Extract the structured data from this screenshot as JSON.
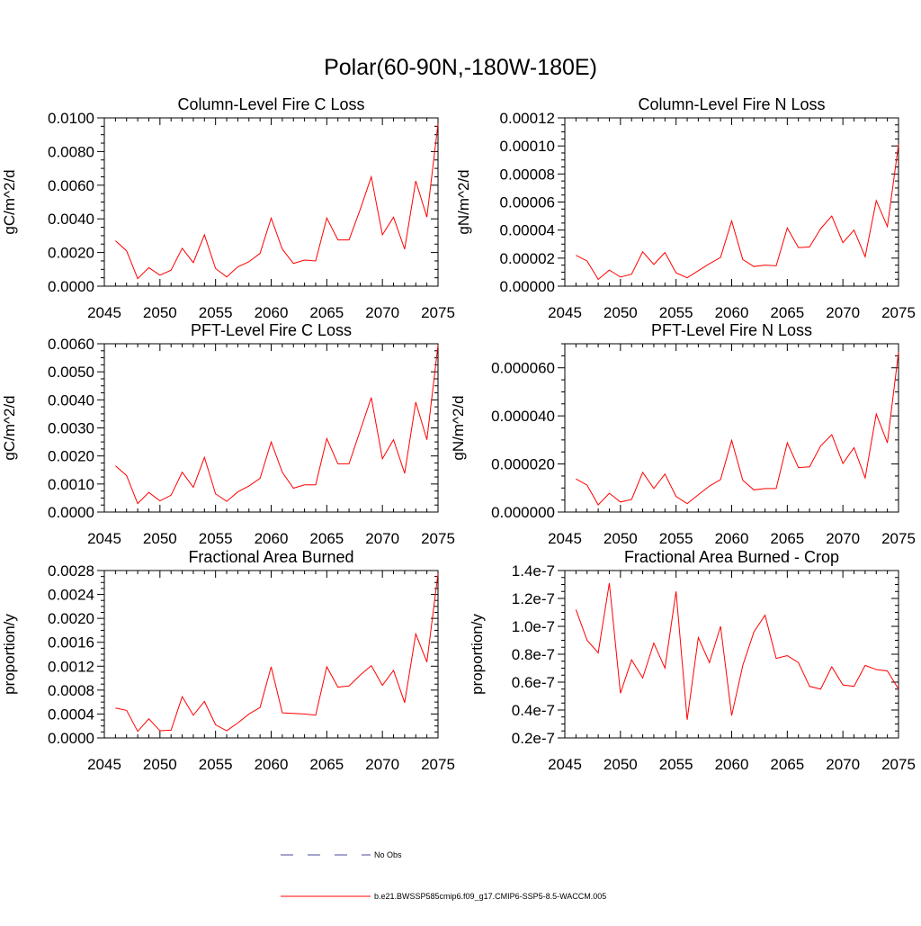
{
  "title": "Polar(60-90N,-180W-180E)",
  "colors": {
    "model_line": "#ff0000",
    "obs_line": "#4a4a99",
    "axis": "#000000"
  },
  "legend": {
    "entries": [
      {
        "label": "No Obs",
        "style": "dashed",
        "color": "#4a4a99"
      },
      {
        "label": "b.e21.BWSSP585cmip6.f09_g17.CMIP6-SSP5-8.5-WACCM.005",
        "style": "solid",
        "color": "#ff0000"
      }
    ]
  },
  "chart_data": [
    {
      "type": "line",
      "title": "Column-Level Fire C Loss",
      "ylabel": "gC/m^2/d",
      "xlim": [
        2045,
        2075
      ],
      "ylim": [
        0,
        0.01
      ],
      "xticks": [
        "2045",
        "2050",
        "2055",
        "2060",
        "2065",
        "2070",
        "2075"
      ],
      "yticks": [
        {
          "value": 0.0,
          "label": "0.0000"
        },
        {
          "value": 0.002,
          "label": "0.0020"
        },
        {
          "value": 0.004,
          "label": "0.0040"
        },
        {
          "value": 0.006,
          "label": "0.0060"
        },
        {
          "value": 0.008,
          "label": "0.0080"
        },
        {
          "value": 0.01,
          "label": "0.0100"
        }
      ],
      "x": [
        2046,
        2047,
        2048,
        2049,
        2050,
        2051,
        2052,
        2053,
        2054,
        2055,
        2056,
        2057,
        2058,
        2059,
        2060,
        2061,
        2062,
        2063,
        2064,
        2065,
        2066,
        2067,
        2068,
        2069,
        2070,
        2071,
        2072,
        2073,
        2074,
        2075
      ],
      "series": [
        {
          "values": [
            0.0027,
            0.0021,
            0.00045,
            0.0011,
            0.00065,
            0.00095,
            0.00225,
            0.0014,
            0.00305,
            0.00105,
            0.00055,
            0.00115,
            0.00145,
            0.00195,
            0.00405,
            0.0022,
            0.00135,
            0.00155,
            0.0015,
            0.00405,
            0.00275,
            0.00275,
            0.00455,
            0.0065,
            0.00305,
            0.0041,
            0.0022,
            0.00625,
            0.0041,
            0.00965
          ]
        }
      ]
    },
    {
      "type": "line",
      "title": "Column-Level Fire N Loss",
      "ylabel": "gN/m^2/d",
      "xlim": [
        2045,
        2075
      ],
      "ylim": [
        0,
        0.00012
      ],
      "xticks": [
        "2045",
        "2050",
        "2055",
        "2060",
        "2065",
        "2070",
        "2075"
      ],
      "yticks": [
        {
          "value": 0.0,
          "label": "0.00000"
        },
        {
          "value": 2e-05,
          "label": "0.00002"
        },
        {
          "value": 4e-05,
          "label": "0.00004"
        },
        {
          "value": 6e-05,
          "label": "0.00006"
        },
        {
          "value": 8e-05,
          "label": "0.00008"
        },
        {
          "value": 0.0001,
          "label": "0.00010"
        },
        {
          "value": 0.00012,
          "label": "0.00012"
        }
      ],
      "x": [
        2046,
        2047,
        2048,
        2049,
        2050,
        2051,
        2052,
        2053,
        2054,
        2055,
        2056,
        2057,
        2058,
        2059,
        2060,
        2061,
        2062,
        2063,
        2064,
        2065,
        2066,
        2067,
        2068,
        2069,
        2070,
        2071,
        2072,
        2073,
        2074,
        2075
      ],
      "series": [
        {
          "values": [
            2.2e-05,
            1.8e-05,
            4.8e-06,
            1.15e-05,
            6.5e-06,
            8.5e-06,
            2.45e-05,
            1.55e-05,
            2.4e-05,
            9.5e-06,
            6e-06,
            1.1e-05,
            1.6e-05,
            2.05e-05,
            4.65e-05,
            1.9e-05,
            1.4e-05,
            1.5e-05,
            1.45e-05,
            4.15e-05,
            2.75e-05,
            2.8e-05,
            4.1e-05,
            5e-05,
            3.1e-05,
            4e-05,
            2.1e-05,
            6.1e-05,
            4.25e-05,
            0.000101
          ]
        }
      ]
    },
    {
      "type": "line",
      "title": "PFT-Level Fire C Loss",
      "ylabel": "gC/m^2/d",
      "xlim": [
        2045,
        2075
      ],
      "ylim": [
        0,
        0.006
      ],
      "xticks": [
        "2045",
        "2050",
        "2055",
        "2060",
        "2065",
        "2070",
        "2075"
      ],
      "yticks": [
        {
          "value": 0.0,
          "label": "0.0000"
        },
        {
          "value": 0.001,
          "label": "0.0010"
        },
        {
          "value": 0.002,
          "label": "0.0020"
        },
        {
          "value": 0.003,
          "label": "0.0030"
        },
        {
          "value": 0.004,
          "label": "0.0040"
        },
        {
          "value": 0.005,
          "label": "0.0050"
        },
        {
          "value": 0.006,
          "label": "0.0060"
        }
      ],
      "x": [
        2046,
        2047,
        2048,
        2049,
        2050,
        2051,
        2052,
        2053,
        2054,
        2055,
        2056,
        2057,
        2058,
        2059,
        2060,
        2061,
        2062,
        2063,
        2064,
        2065,
        2066,
        2067,
        2068,
        2069,
        2070,
        2071,
        2072,
        2073,
        2074,
        2075
      ],
      "series": [
        {
          "values": [
            0.00165,
            0.0013,
            0.0003,
            0.0007,
            0.0004,
            0.0006,
            0.00142,
            0.00088,
            0.00195,
            0.00065,
            0.00038,
            0.00072,
            0.00093,
            0.0012,
            0.0025,
            0.00142,
            0.00085,
            0.00097,
            0.00097,
            0.00262,
            0.00172,
            0.00172,
            0.0029,
            0.00408,
            0.0019,
            0.00258,
            0.00138,
            0.00392,
            0.00258,
            0.00595
          ]
        }
      ]
    },
    {
      "type": "line",
      "title": "PFT-Level Fire N Loss",
      "ylabel": "gN/m^2/d",
      "xlim": [
        2045,
        2075
      ],
      "ylim": [
        0,
        7e-05
      ],
      "xticks": [
        "2045",
        "2050",
        "2055",
        "2060",
        "2065",
        "2070",
        "2075"
      ],
      "yticks": [
        {
          "value": 0.0,
          "label": "0.000000"
        },
        {
          "value": 2e-05,
          "label": "0.000020"
        },
        {
          "value": 4e-05,
          "label": "0.000040"
        },
        {
          "value": 6e-05,
          "label": "0.000060"
        }
      ],
      "x": [
        2046,
        2047,
        2048,
        2049,
        2050,
        2051,
        2052,
        2053,
        2054,
        2055,
        2056,
        2057,
        2058,
        2059,
        2060,
        2061,
        2062,
        2063,
        2064,
        2065,
        2066,
        2067,
        2068,
        2069,
        2070,
        2071,
        2072,
        2073,
        2074,
        2075
      ],
      "series": [
        {
          "values": [
            1.38e-05,
            1.12e-05,
            3e-06,
            7.8e-06,
            4.2e-06,
            5.2e-06,
            1.65e-05,
            9.8e-06,
            1.58e-05,
            6.5e-06,
            3.5e-06,
            7.2e-06,
            1.08e-05,
            1.35e-05,
            2.98e-05,
            1.32e-05,
            9.2e-06,
            9.8e-06,
            9.8e-06,
            2.88e-05,
            1.85e-05,
            1.88e-05,
            2.75e-05,
            3.22e-05,
            2.02e-05,
            2.68e-05,
            1.42e-05,
            4.08e-05,
            2.88e-05,
            6.65e-05
          ]
        }
      ]
    },
    {
      "type": "line",
      "title": "Fractional Area Burned",
      "ylabel": "proportion/y",
      "xlim": [
        2045,
        2075
      ],
      "ylim": [
        0,
        0.0028
      ],
      "xticks": [
        "2045",
        "2050",
        "2055",
        "2060",
        "2065",
        "2070",
        "2075"
      ],
      "yticks": [
        {
          "value": 0.0,
          "label": "0.0000"
        },
        {
          "value": 0.0004,
          "label": "0.0004"
        },
        {
          "value": 0.0008,
          "label": "0.0008"
        },
        {
          "value": 0.0012,
          "label": "0.0012"
        },
        {
          "value": 0.0016,
          "label": "0.0016"
        },
        {
          "value": 0.002,
          "label": "0.0020"
        },
        {
          "value": 0.0024,
          "label": "0.0024"
        },
        {
          "value": 0.0028,
          "label": "0.0028"
        }
      ],
      "x": [
        2046,
        2047,
        2048,
        2049,
        2050,
        2051,
        2052,
        2053,
        2054,
        2055,
        2056,
        2057,
        2058,
        2059,
        2060,
        2061,
        2062,
        2063,
        2064,
        2065,
        2066,
        2067,
        2068,
        2069,
        2070,
        2071,
        2072,
        2073,
        2074,
        2075
      ],
      "series": [
        {
          "values": [
            0.0005,
            0.00046,
            0.00011,
            0.00032,
            0.00012,
            0.00013,
            0.00069,
            0.00038,
            0.00061,
            0.00022,
            0.00012,
            0.00025,
            0.0004,
            0.00051,
            0.00119,
            0.00042,
            0.00041,
            0.0004,
            0.00038,
            0.00119,
            0.00085,
            0.00087,
            0.00105,
            0.00121,
            0.00088,
            0.00113,
            0.00059,
            0.00174,
            0.00127,
            0.00275
          ]
        }
      ]
    },
    {
      "type": "line",
      "title": "Fractional Area Burned - Crop",
      "ylabel": "proportion/y",
      "xlim": [
        2045,
        2075
      ],
      "ylim": [
        2e-08,
        1.4e-07
      ],
      "xticks": [
        "2045",
        "2050",
        "2055",
        "2060",
        "2065",
        "2070",
        "2075"
      ],
      "yticks": [
        {
          "value": 2e-08,
          "label": "0.2e-7"
        },
        {
          "value": 4e-08,
          "label": "0.4e-7"
        },
        {
          "value": 6e-08,
          "label": "0.6e-7"
        },
        {
          "value": 8e-08,
          "label": "0.8e-7"
        },
        {
          "value": 1e-07,
          "label": "1.0e-7"
        },
        {
          "value": 1.2e-07,
          "label": "1.2e-7"
        },
        {
          "value": 1.4e-07,
          "label": "1.4e-7"
        }
      ],
      "x": [
        2046,
        2047,
        2048,
        2049,
        2050,
        2051,
        2052,
        2053,
        2054,
        2055,
        2056,
        2057,
        2058,
        2059,
        2060,
        2061,
        2062,
        2063,
        2064,
        2065,
        2066,
        2067,
        2068,
        2069,
        2070,
        2071,
        2072,
        2073,
        2074,
        2075
      ],
      "series": [
        {
          "values": [
            1.12e-07,
            9e-08,
            8.1e-08,
            1.31e-07,
            5.2e-08,
            7.6e-08,
            6.3e-08,
            8.8e-08,
            7e-08,
            1.25e-07,
            3.3e-08,
            9.2e-08,
            7.4e-08,
            1e-07,
            3.6e-08,
            7.2e-08,
            9.6e-08,
            1.08e-07,
            7.7e-08,
            7.9e-08,
            7.4e-08,
            5.7e-08,
            5.5e-08,
            7.1e-08,
            5.8e-08,
            5.7e-08,
            7.2e-08,
            6.9e-08,
            6.8e-08,
            5.5e-08
          ]
        }
      ]
    }
  ]
}
